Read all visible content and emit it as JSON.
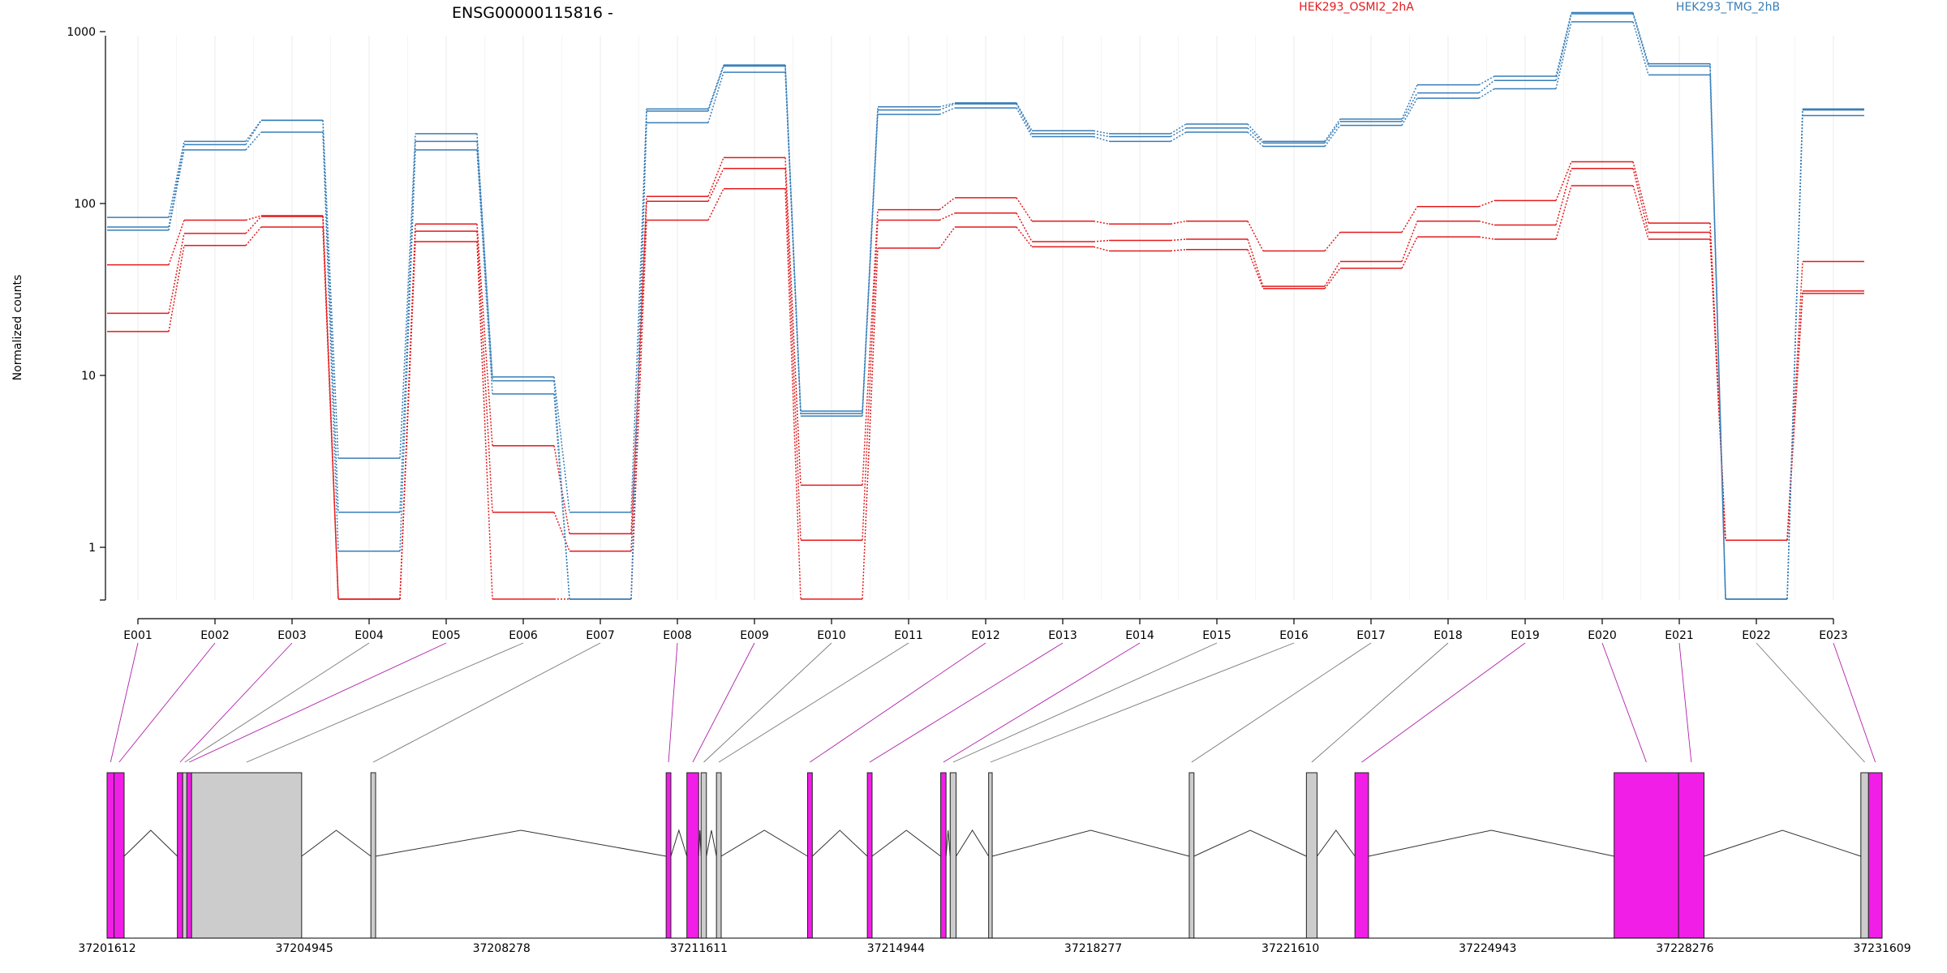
{
  "chart_data": {
    "type": "line",
    "title": "ENSG00000115816 -",
    "ylabel": "Normalized counts",
    "xlabel": "",
    "yscale": "log",
    "ylim": [
      0.5,
      1700
    ],
    "grid": "vertical",
    "legend_position": "top",
    "y_ticks": [
      1,
      10,
      100,
      1000
    ],
    "y_tick_labels": [
      "1",
      "10",
      "100",
      "1000"
    ],
    "categories": [
      "E001",
      "E002",
      "E003",
      "E004",
      "E005",
      "E006",
      "E007",
      "E008",
      "E009",
      "E010",
      "E011",
      "E012",
      "E013",
      "E014",
      "E015",
      "E016",
      "E017",
      "E018",
      "E019",
      "E020",
      "E021",
      "E022",
      "E023"
    ],
    "series": [
      {
        "name": "HEK293_OSMI2_2hA",
        "group": "HEK293_OSMI2_2hA",
        "color": "#e41a1c",
        "values": [
          44,
          80,
          85,
          0.5,
          76,
          3.9,
          1.2,
          110,
          185,
          2.3,
          92,
          108,
          79,
          76,
          79,
          53,
          68,
          96,
          104,
          175,
          77,
          1.1,
          46
        ]
      },
      {
        "name": "",
        "group": "HEK293_OSMI2_2hA",
        "color": "#e41a1c",
        "values": [
          23,
          67,
          84,
          0.5,
          69,
          1.6,
          0.95,
          103,
          160,
          1.1,
          80,
          88,
          60,
          61,
          62,
          33,
          46,
          79,
          75,
          160,
          68,
          1.1,
          31
        ]
      },
      {
        "name": "",
        "group": "HEK293_OSMI2_2hA",
        "color": "#e41a1c",
        "values": [
          18,
          57,
          73,
          0.5,
          60,
          0.5,
          0.5,
          80,
          122,
          0.5,
          55,
          73,
          56,
          53,
          54,
          32,
          42,
          64,
          62,
          127,
          62,
          1.1,
          30
        ]
      },
      {
        "name": "HEK293_TMG_2hB",
        "group": "HEK293_TMG_2hB",
        "color": "#377eb8",
        "values": [
          83,
          230,
          305,
          3.3,
          255,
          9.8,
          1.6,
          355,
          640,
          6.2,
          365,
          385,
          265,
          255,
          290,
          230,
          310,
          490,
          550,
          1290,
          650,
          0.5,
          355
        ]
      },
      {
        "name": "",
        "group": "HEK293_TMG_2hB",
        "color": "#377eb8",
        "values": [
          73,
          220,
          305,
          1.6,
          230,
          9.3,
          0.5,
          345,
          630,
          6.0,
          350,
          380,
          255,
          245,
          275,
          225,
          300,
          440,
          520,
          1270,
          630,
          0.5,
          350
        ]
      },
      {
        "name": "",
        "group": "HEK293_TMG_2hB",
        "color": "#377eb8",
        "values": [
          70,
          205,
          260,
          0.95,
          205,
          7.8,
          0.5,
          295,
          580,
          5.8,
          330,
          360,
          245,
          230,
          260,
          215,
          285,
          410,
          465,
          1140,
          560,
          0.5,
          325
        ]
      }
    ],
    "gene_model": {
      "coordinate_labels": [
        "37201612",
        "37204945",
        "37208278",
        "37211611",
        "37214944",
        "37218277",
        "37221610",
        "37224943",
        "37228276",
        "37231609"
      ],
      "coordinate_range": [
        37201612,
        37231609
      ],
      "exon_fill_colors": {
        "significant": "#f01ee6",
        "not_significant": "#cccccc"
      },
      "exons": [
        {
          "id": "E001",
          "start": 37201612,
          "end": 37201730,
          "significant": true
        },
        {
          "id": "E002",
          "start": 37201730,
          "end": 37201900,
          "significant": true
        },
        {
          "id": "E003",
          "start": 37202800,
          "end": 37202890,
          "significant": true
        },
        {
          "id": "E004",
          "start": 37202890,
          "end": 37202960,
          "significant": false
        },
        {
          "id": "E005",
          "start": 37202960,
          "end": 37203040,
          "significant": true
        },
        {
          "id": "E006",
          "start": 37203040,
          "end": 37204900,
          "significant": false
        },
        {
          "id": "E007",
          "start": 37206070,
          "end": 37206150,
          "significant": false
        },
        {
          "id": "E008",
          "start": 37211060,
          "end": 37211140,
          "significant": true
        },
        {
          "id": "E009",
          "start": 37211410,
          "end": 37211610,
          "significant": true
        },
        {
          "id": "E010",
          "start": 37211650,
          "end": 37211740,
          "significant": false
        },
        {
          "id": "E011",
          "start": 37211910,
          "end": 37211990,
          "significant": false
        },
        {
          "id": "E012",
          "start": 37213450,
          "end": 37213530,
          "significant": true
        },
        {
          "id": "E013",
          "start": 37214460,
          "end": 37214540,
          "significant": true
        },
        {
          "id": "E014",
          "start": 37215700,
          "end": 37215790,
          "significant": true
        },
        {
          "id": "E015",
          "start": 37215860,
          "end": 37215960,
          "significant": false
        },
        {
          "id": "E016",
          "start": 37216510,
          "end": 37216570,
          "significant": false
        },
        {
          "id": "E017",
          "start": 37219900,
          "end": 37219980,
          "significant": false
        },
        {
          "id": "E018",
          "start": 37221880,
          "end": 37222060,
          "significant": false
        },
        {
          "id": "E019",
          "start": 37222700,
          "end": 37222930,
          "significant": true
        },
        {
          "id": "E020",
          "start": 37227080,
          "end": 37228170,
          "significant": true
        },
        {
          "id": "E021",
          "start": 37228170,
          "end": 37228600,
          "significant": true
        },
        {
          "id": "E022",
          "start": 37231250,
          "end": 37231380,
          "significant": false
        },
        {
          "id": "E023",
          "start": 37231380,
          "end": 37231609,
          "significant": true
        }
      ]
    }
  }
}
